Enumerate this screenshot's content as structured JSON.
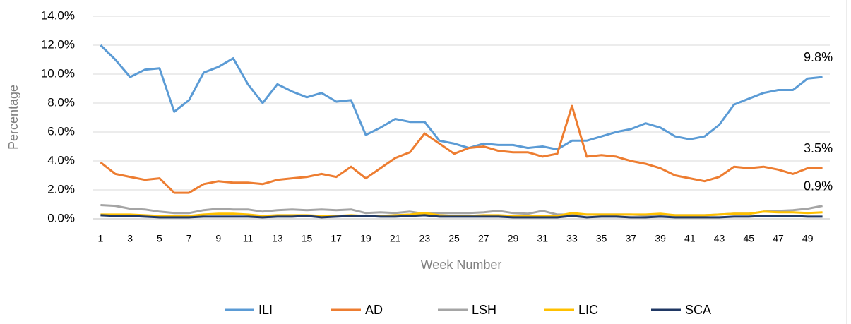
{
  "chart_data": {
    "type": "line",
    "x_label": "Week Number",
    "y_label": "Percentage",
    "categories": [
      1,
      null,
      3,
      null,
      5,
      null,
      7,
      null,
      9,
      null,
      11,
      null,
      13,
      null,
      15,
      null,
      17,
      null,
      19,
      null,
      21,
      null,
      23,
      null,
      25,
      null,
      27,
      null,
      29,
      null,
      31,
      null,
      33,
      null,
      35,
      null,
      37,
      null,
      39,
      null,
      41,
      null,
      43,
      null,
      45,
      null,
      47,
      null,
      49,
      null
    ],
    "ylim": [
      0,
      14
    ],
    "yticks": [
      {
        "value": 0,
        "label": "0.0%"
      },
      {
        "value": 2,
        "label": "2.0%"
      },
      {
        "value": 4,
        "label": "4.0%"
      },
      {
        "value": 6,
        "label": "6.0%"
      },
      {
        "value": 8,
        "label": "8.0%"
      },
      {
        "value": 10,
        "label": "10.0%"
      },
      {
        "value": 12,
        "label": "12.0%"
      },
      {
        "value": 14,
        "label": "14.0%"
      }
    ],
    "grid": true,
    "legend": "bottom",
    "series": [
      {
        "name": "ILI",
        "color": "#5b9bd5",
        "values": [
          12.0,
          11.0,
          9.8,
          10.3,
          10.4,
          7.4,
          8.2,
          10.1,
          10.5,
          11.1,
          9.3,
          8.0,
          9.3,
          8.8,
          8.4,
          8.7,
          8.1,
          8.2,
          5.8,
          6.3,
          6.9,
          6.7,
          6.7,
          5.4,
          5.2,
          4.9,
          5.2,
          5.1,
          5.1,
          4.9,
          5.0,
          4.8,
          5.4,
          5.4,
          5.7,
          6.0,
          6.2,
          6.6,
          6.3,
          5.7,
          5.5,
          5.7,
          6.5,
          7.9,
          8.3,
          8.7,
          8.9,
          8.9,
          9.7,
          9.8
        ],
        "value_labels": [
          null,
          null,
          null,
          null,
          null,
          null,
          null,
          null,
          null,
          null,
          null,
          null,
          null,
          null,
          null,
          null,
          null,
          null,
          null,
          null,
          null,
          null,
          null,
          null,
          null,
          null,
          null,
          null,
          null,
          null,
          null,
          null,
          null,
          null,
          null,
          null,
          null,
          null,
          null,
          null,
          null,
          null,
          null,
          null,
          null,
          null,
          null,
          null,
          null,
          "9.8%"
        ]
      },
      {
        "name": "AD",
        "color": "#ed7d31",
        "values": [
          3.9,
          3.1,
          2.9,
          2.7,
          2.8,
          1.8,
          1.8,
          2.4,
          2.6,
          2.5,
          2.5,
          2.4,
          2.7,
          2.8,
          2.9,
          3.1,
          2.9,
          3.6,
          2.8,
          3.5,
          4.2,
          4.6,
          5.9,
          5.2,
          4.5,
          4.9,
          5.0,
          4.7,
          4.6,
          4.6,
          4.3,
          4.5,
          7.8,
          4.3,
          4.4,
          4.3,
          4.0,
          3.8,
          3.5,
          3.0,
          2.8,
          2.6,
          2.9,
          3.6,
          3.5,
          3.6,
          3.4,
          3.1,
          3.5,
          3.5
        ],
        "value_labels": [
          null,
          null,
          null,
          null,
          null,
          null,
          null,
          null,
          null,
          null,
          null,
          null,
          null,
          null,
          null,
          null,
          null,
          null,
          null,
          null,
          null,
          null,
          null,
          null,
          null,
          null,
          null,
          null,
          null,
          null,
          null,
          null,
          null,
          null,
          null,
          null,
          null,
          null,
          null,
          null,
          null,
          null,
          null,
          null,
          null,
          null,
          null,
          null,
          null,
          "3.5%"
        ]
      },
      {
        "name": "LSH",
        "color": "#a5a5a5",
        "values": [
          0.95,
          0.9,
          0.7,
          0.65,
          0.5,
          0.4,
          0.4,
          0.6,
          0.7,
          0.65,
          0.65,
          0.5,
          0.6,
          0.65,
          0.6,
          0.65,
          0.6,
          0.65,
          0.4,
          0.45,
          0.4,
          0.5,
          0.35,
          0.4,
          0.4,
          0.4,
          0.45,
          0.55,
          0.4,
          0.35,
          0.55,
          0.3,
          0.3,
          0.3,
          0.3,
          0.3,
          0.3,
          0.25,
          0.3,
          0.25,
          0.25,
          0.25,
          0.3,
          0.35,
          0.35,
          0.5,
          0.55,
          0.6,
          0.7,
          0.9
        ],
        "value_labels": [
          null,
          null,
          null,
          null,
          null,
          null,
          null,
          null,
          null,
          null,
          null,
          null,
          null,
          null,
          null,
          null,
          null,
          null,
          null,
          null,
          null,
          null,
          null,
          null,
          null,
          null,
          null,
          null,
          null,
          null,
          null,
          null,
          null,
          null,
          null,
          null,
          null,
          null,
          null,
          null,
          null,
          null,
          null,
          null,
          null,
          null,
          null,
          null,
          null,
          "0.9%"
        ]
      },
      {
        "name": "LIC",
        "color": "#ffc000",
        "values": [
          0.3,
          0.3,
          0.3,
          0.25,
          0.2,
          0.2,
          0.2,
          0.3,
          0.35,
          0.35,
          0.3,
          0.2,
          0.25,
          0.25,
          0.25,
          0.2,
          0.2,
          0.25,
          0.2,
          0.2,
          0.25,
          0.3,
          0.4,
          0.25,
          0.2,
          0.2,
          0.25,
          0.25,
          0.2,
          0.2,
          0.2,
          0.2,
          0.4,
          0.3,
          0.3,
          0.3,
          0.3,
          0.3,
          0.35,
          0.25,
          0.25,
          0.25,
          0.3,
          0.35,
          0.35,
          0.5,
          0.45,
          0.45,
          0.4,
          0.45
        ]
      },
      {
        "name": "SCA",
        "color": "#203864",
        "values": [
          0.25,
          0.2,
          0.2,
          0.15,
          0.1,
          0.1,
          0.1,
          0.15,
          0.15,
          0.15,
          0.15,
          0.1,
          0.15,
          0.15,
          0.2,
          0.1,
          0.15,
          0.2,
          0.2,
          0.15,
          0.15,
          0.2,
          0.25,
          0.15,
          0.15,
          0.15,
          0.15,
          0.15,
          0.1,
          0.1,
          0.1,
          0.1,
          0.2,
          0.1,
          0.15,
          0.15,
          0.1,
          0.1,
          0.15,
          0.1,
          0.1,
          0.1,
          0.1,
          0.15,
          0.15,
          0.2,
          0.2,
          0.2,
          0.15,
          0.15
        ]
      }
    ]
  }
}
